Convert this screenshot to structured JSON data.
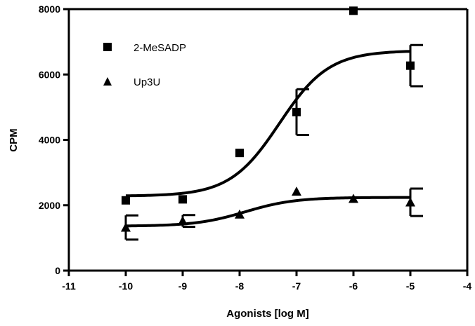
{
  "chart_data": {
    "type": "scatter",
    "title": "",
    "xlabel": "Agonists [log M]",
    "ylabel": "CPM",
    "xlim": [
      -11,
      -4
    ],
    "ylim": [
      0,
      8000
    ],
    "xticks": [
      -11,
      -10,
      -9,
      -8,
      -7,
      -6,
      -5,
      -4
    ],
    "yticks": [
      0,
      2000,
      4000,
      6000,
      8000
    ],
    "xtick_labels": [
      "-11",
      "-10",
      "-9",
      "-8",
      "-7",
      "-6",
      "-5",
      "-4"
    ],
    "ytick_labels": [
      "0",
      "2000",
      "4000",
      "6000",
      "8000"
    ],
    "grid": false,
    "legend_position": "top-left",
    "series": [
      {
        "name": "2-MeSADP",
        "marker": "square",
        "x": [
          -10,
          -9,
          -8,
          -7,
          -6,
          -5
        ],
        "y": [
          2150,
          2180,
          3600,
          4850,
          7950,
          6270
        ],
        "error": [
          0,
          0,
          0,
          700,
          0,
          630
        ],
        "fit": {
          "bottom": 2280,
          "top": 6730,
          "log_ec50": -7.3,
          "hill": 1
        }
      },
      {
        "name": "Up3U",
        "marker": "triangle",
        "x": [
          -10,
          -9,
          -8,
          -7,
          -6,
          -5
        ],
        "y": [
          1320,
          1520,
          1720,
          2420,
          2200,
          2090
        ],
        "error": [
          370,
          180,
          0,
          0,
          0,
          420
        ],
        "fit": {
          "bottom": 1360,
          "top": 2240,
          "log_ec50": -7.9,
          "hill": 1
        }
      }
    ]
  }
}
